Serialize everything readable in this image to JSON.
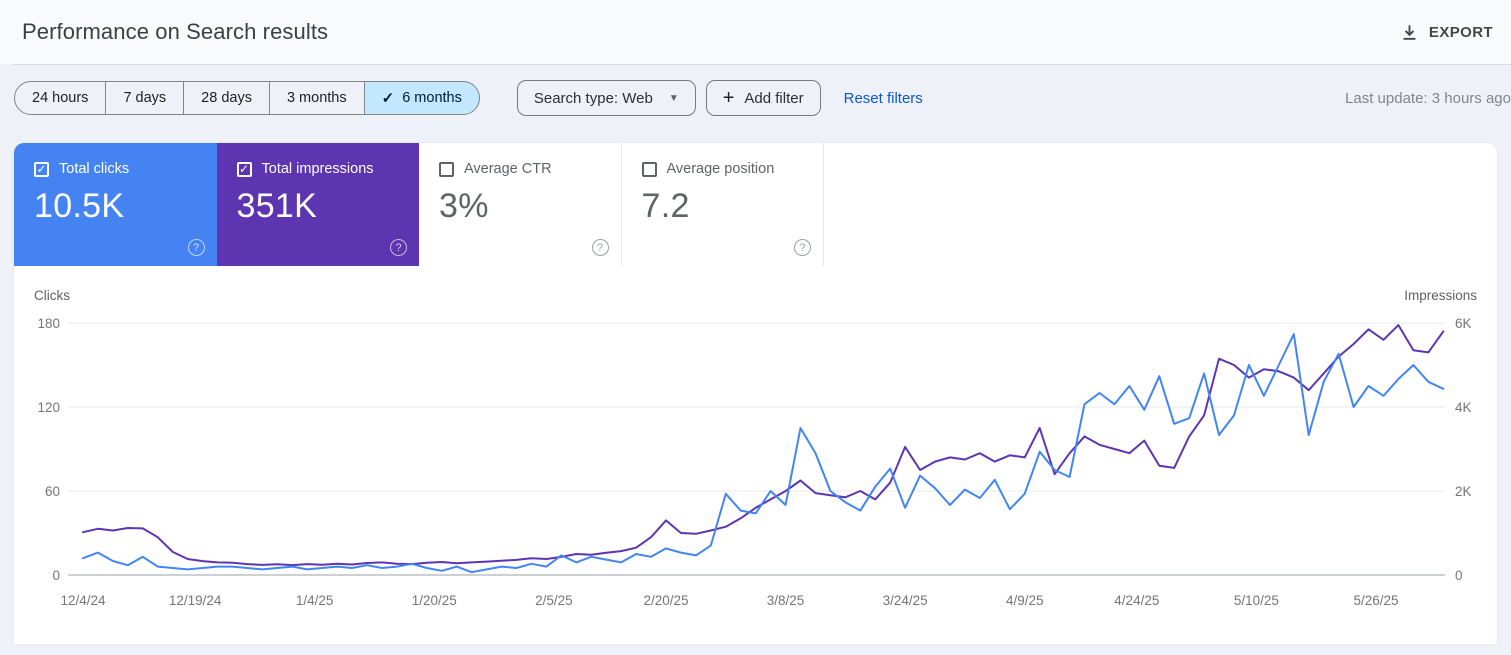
{
  "header": {
    "title": "Performance on Search results",
    "export_label": "EXPORT"
  },
  "filters": {
    "date_ranges": [
      {
        "label": "24 hours",
        "selected": false
      },
      {
        "label": "7 days",
        "selected": false
      },
      {
        "label": "28 days",
        "selected": false
      },
      {
        "label": "3 months",
        "selected": false
      },
      {
        "label": "6 months",
        "selected": true
      }
    ],
    "search_type_label": "Search type: Web",
    "add_filter_label": "Add filter",
    "reset_filters_label": "Reset filters",
    "last_update": "Last update: 3 hours ago"
  },
  "metrics": [
    {
      "id": "total-clicks",
      "label": "Total clicks",
      "value": "10.5K",
      "checked": true,
      "bg": "#4583f3"
    },
    {
      "id": "total-impressions",
      "label": "Total impressions",
      "value": "351K",
      "checked": true,
      "bg": "#5e35b1"
    },
    {
      "id": "average-ctr",
      "label": "Average CTR",
      "value": "3%",
      "checked": false,
      "bg": null
    },
    {
      "id": "average-position",
      "label": "Average position",
      "value": "7.2",
      "checked": false,
      "bg": null
    }
  ],
  "chart_data": {
    "type": "line",
    "grid": true,
    "legend_position": "none",
    "axes": {
      "left": {
        "title": "Clicks",
        "ticks": [
          "180",
          "120",
          "60",
          "0"
        ],
        "range": [
          0,
          180
        ]
      },
      "right": {
        "title": "Impressions",
        "ticks": [
          "6K",
          "4K",
          "2K",
          "0"
        ],
        "range": [
          0,
          6000
        ]
      }
    },
    "x_labels": [
      "12/4/24",
      "12/19/24",
      "1/4/25",
      "1/20/25",
      "2/5/25",
      "2/20/25",
      "3/8/25",
      "3/24/25",
      "4/9/25",
      "4/24/25",
      "5/10/25",
      "5/26/25"
    ],
    "x_label_day_offsets": [
      0,
      15,
      31,
      47,
      63,
      78,
      94,
      110,
      126,
      141,
      157,
      173
    ],
    "days_per_point": 2,
    "total_days": 182,
    "series": [
      {
        "name": "Clicks",
        "axis": "left",
        "color": "#4285f4",
        "values": [
          12,
          16,
          10,
          7,
          13,
          6,
          5,
          4,
          5,
          6,
          6,
          5,
          4,
          5,
          6,
          4,
          5,
          6,
          5,
          7,
          5,
          6,
          8,
          5,
          3,
          6,
          2,
          4,
          6,
          5,
          8,
          6,
          14,
          9,
          13,
          11,
          9,
          15,
          13,
          19,
          16,
          14,
          21,
          58,
          46,
          44,
          60,
          50,
          105,
          87,
          60,
          52,
          46,
          63,
          76,
          48,
          71,
          62,
          50,
          61,
          55,
          68,
          47,
          58,
          88,
          75,
          70,
          122,
          130,
          122,
          135,
          118,
          142,
          108,
          112,
          144,
          100,
          114,
          150,
          128,
          150,
          172,
          100,
          138,
          158,
          120,
          135,
          128,
          140,
          150,
          138,
          133
        ]
      },
      {
        "name": "Impressions",
        "axis": "right",
        "color": "#5e35b1",
        "values": [
          1020,
          1100,
          1060,
          1120,
          1110,
          900,
          550,
          380,
          330,
          300,
          290,
          260,
          240,
          255,
          235,
          260,
          245,
          270,
          250,
          285,
          300,
          270,
          260,
          290,
          310,
          280,
          300,
          320,
          340,
          360,
          400,
          380,
          430,
          500,
          480,
          530,
          570,
          650,
          900,
          1300,
          1000,
          980,
          1060,
          1150,
          1350,
          1600,
          1800,
          2000,
          2250,
          1950,
          1900,
          1850,
          2000,
          1800,
          2200,
          3050,
          2500,
          2700,
          2800,
          2750,
          2900,
          2700,
          2850,
          2800,
          3500,
          2400,
          2900,
          3300,
          3100,
          3000,
          2900,
          3200,
          2600,
          2550,
          3300,
          3800,
          5150,
          5000,
          4700,
          4900,
          4850,
          4700,
          4400,
          4800,
          5200,
          5500,
          5850,
          5600,
          5950,
          5350,
          5300,
          5800
        ]
      }
    ]
  }
}
